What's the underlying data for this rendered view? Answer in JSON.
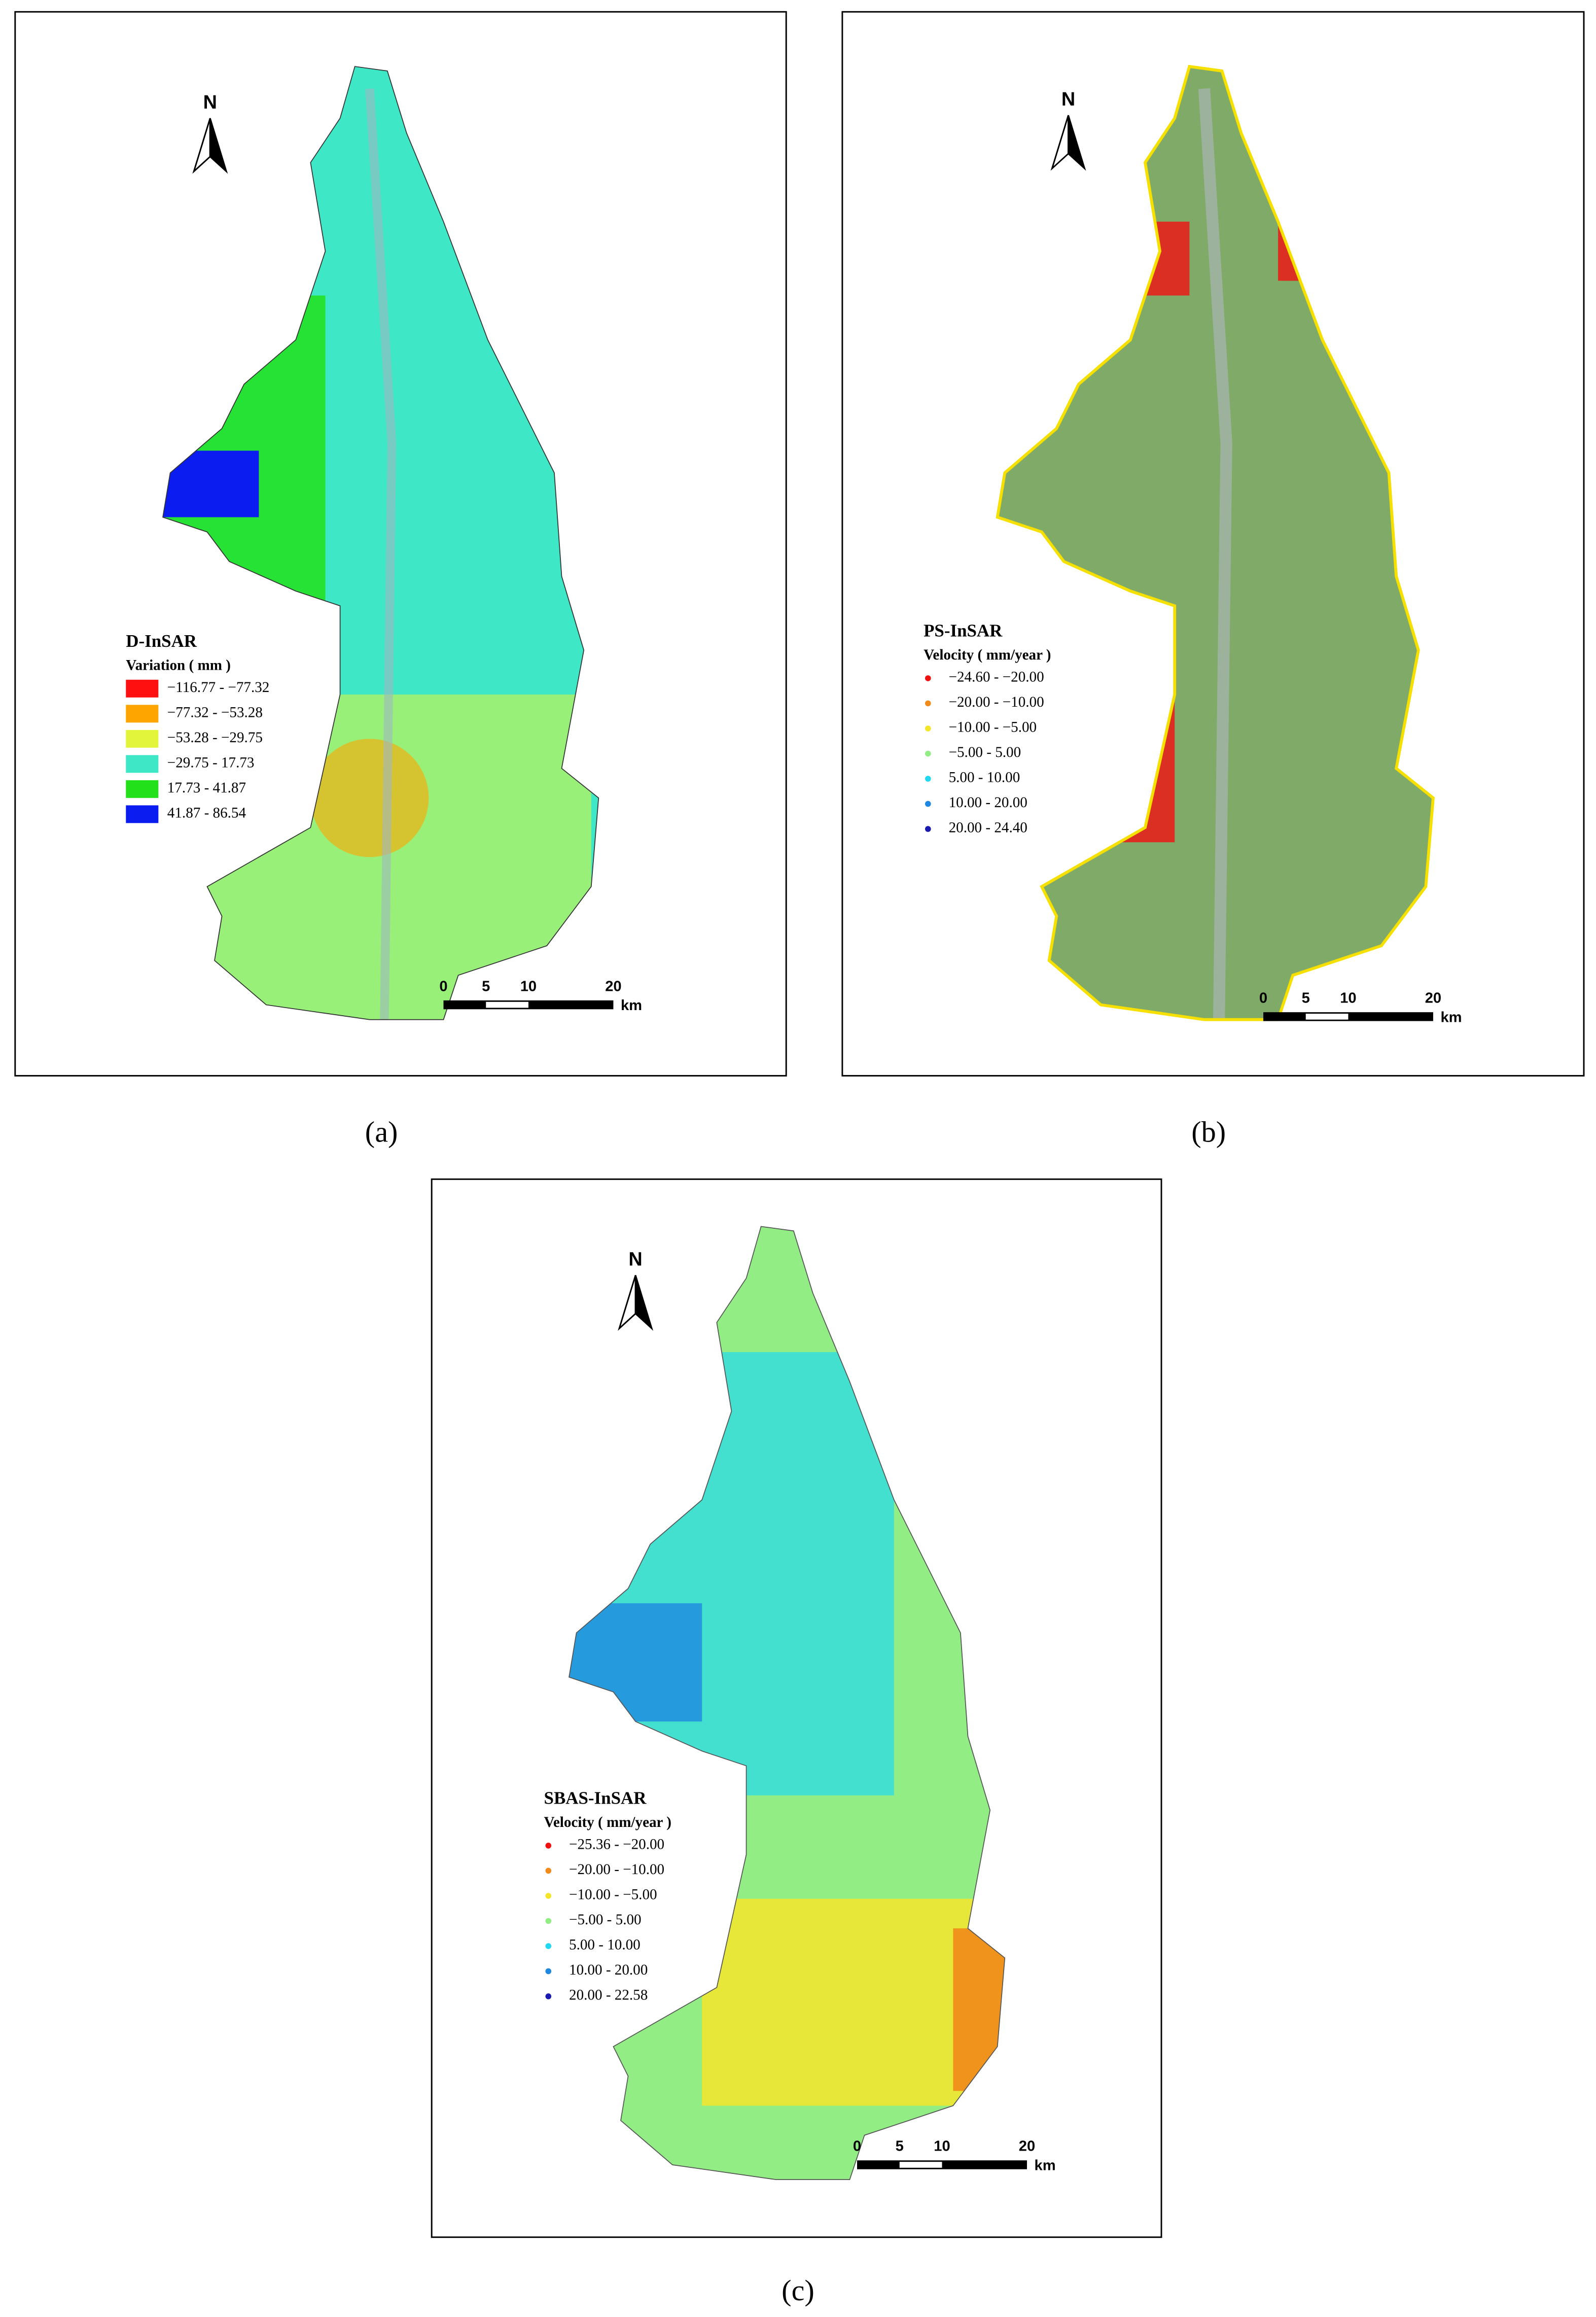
{
  "panels": [
    {
      "caption": "(a)",
      "north": "N",
      "legend": {
        "title": "D-InSAR",
        "subtitle": "Variation ( mm )",
        "symbol": "square",
        "items": [
          {
            "label": "−116.77 - −77.32",
            "color": "#ff1010"
          },
          {
            "label": "−77.32 - −53.28",
            "color": "#ffa500"
          },
          {
            "label": "−53.28 - −29.75",
            "color": "#e2f53a"
          },
          {
            "label": "−29.75 - 17.73",
            "color": "#3ee8c6"
          },
          {
            "label": "17.73 - 41.87",
            "color": "#22e01a"
          },
          {
            "label": "41.87 - 86.54",
            "color": "#0a1cf0"
          }
        ]
      },
      "scale_bar": {
        "ticks": [
          0,
          5,
          10,
          20
        ],
        "unit": "km"
      }
    },
    {
      "caption": "(b)",
      "north": "N",
      "legend": {
        "title": "PS-InSAR",
        "subtitle": "Velocity ( mm/year )",
        "symbol": "dot",
        "items": [
          {
            "label": "−24.60 - −20.00",
            "color": "#f01010"
          },
          {
            "label": "−20.00 - −10.00",
            "color": "#f08a1a"
          },
          {
            "label": "−10.00 - −5.00",
            "color": "#f5e52a"
          },
          {
            "label": "−5.00 - 5.00",
            "color": "#92ee84"
          },
          {
            "label": "5.00 - 10.00",
            "color": "#22d8f0"
          },
          {
            "label": "10.00 - 20.00",
            "color": "#1e88e0"
          },
          {
            "label": "20.00 - 24.40",
            "color": "#1a1ab0"
          }
        ]
      },
      "scale_bar": {
        "ticks": [
          0,
          5,
          10,
          20
        ],
        "unit": "km"
      }
    },
    {
      "caption": "(c)",
      "north": "N",
      "legend": {
        "title": "SBAS-InSAR",
        "subtitle": "Velocity ( mm/year )",
        "symbol": "dot",
        "items": [
          {
            "label": "−25.36 - −20.00",
            "color": "#f01010"
          },
          {
            "label": "−20.00 - −10.00",
            "color": "#f08a1a"
          },
          {
            "label": "−10.00 - −5.00",
            "color": "#f5e52a"
          },
          {
            "label": "−5.00 - 5.00",
            "color": "#92ee84"
          },
          {
            "label": "5.00 - 10.00",
            "color": "#22d8f0"
          },
          {
            "label": "10.00 - 20.00",
            "color": "#1e88e0"
          },
          {
            "label": "20.00 - 22.58",
            "color": "#1a1ab0"
          }
        ]
      },
      "scale_bar": {
        "ticks": [
          0,
          5,
          10,
          20
        ],
        "unit": "km"
      }
    }
  ]
}
